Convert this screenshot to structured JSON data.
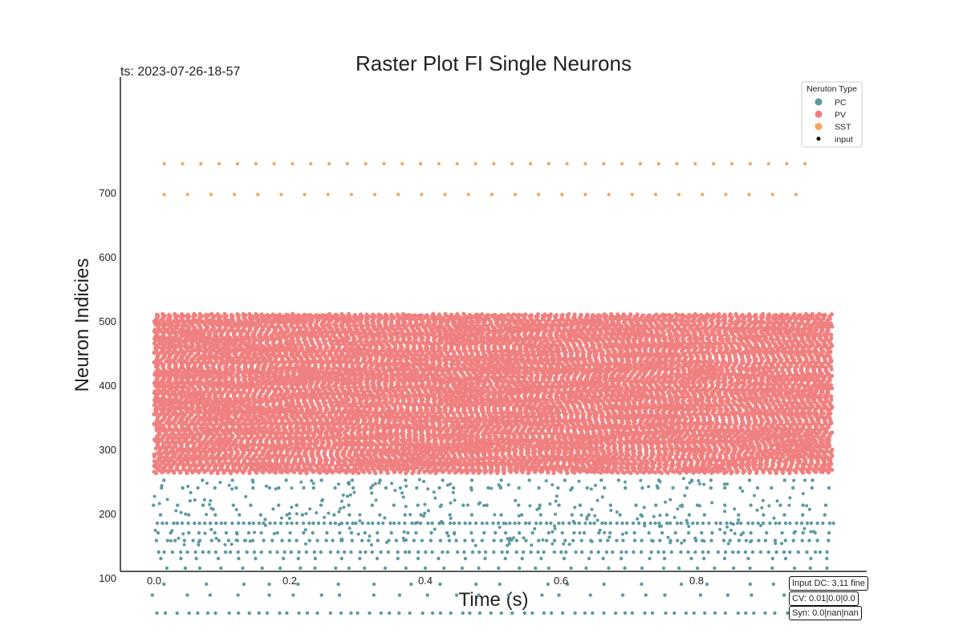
{
  "chart_data": {
    "type": "scatter",
    "title": "Raster Plot FI Single Neurons",
    "subtitle": "ts: 2023-07-26-18-57",
    "xlabel": "Time (s)",
    "ylabel": "Neuron Indicies",
    "xlim": [
      -0.05,
      1.05
    ],
    "ylim": [
      10,
      780
    ],
    "x_ticks": [
      0.0,
      0.2,
      0.4,
      0.6,
      0.8
    ],
    "x_tick_labels": [
      "0.0",
      "0.2",
      "0.4",
      "0.6",
      "0.8"
    ],
    "y_ticks": [
      100,
      200,
      300,
      400,
      500,
      600,
      700
    ],
    "y_tick_labels": [
      "100",
      "200",
      "300",
      "400",
      "500",
      "600",
      "700"
    ],
    "grid": false,
    "legend": {
      "title": "Neruton Type",
      "placement": "top-right",
      "entries": [
        {
          "label": "PC",
          "color": "#5b9aa0"
        },
        {
          "label": "PV",
          "color": "#f08080"
        },
        {
          "label": "SST",
          "color": "#f4a460"
        },
        {
          "label": "input",
          "color": "#000000"
        }
      ]
    },
    "series": [
      {
        "name": "PC",
        "color": "#5b9aa0",
        "rows": [
          {
            "neuron": 45,
            "spike_interval_s": 0.015,
            "t_start": 0.003,
            "t_end": 1.003
          },
          {
            "neuron": 73,
            "spike_interval_s": 0.04,
            "t_start": 0.003,
            "t_end": 0.99
          },
          {
            "neuron": 90,
            "spike_interval_s": 0.05,
            "t_start": 0.02,
            "t_end": 0.99
          },
          {
            "neuron": 115,
            "spike_interval_s": 0.027,
            "t_start": 0.02,
            "t_end": 1.0
          },
          {
            "neuron": 130,
            "spike_interval_s": 0.03,
            "t_start": 0.005,
            "t_end": 1.005
          },
          {
            "neuron": 140,
            "spike_interval_s": 0.011,
            "t_start": 0.005,
            "t_end": 1.005
          },
          {
            "neuron": 158,
            "spike_interval_s": 0.013,
            "t_start": 0.005,
            "t_end": 1.005
          },
          {
            "neuron": 170,
            "spike_interval_s": 0.019,
            "t_start": 0.01,
            "t_end": 1.0
          },
          {
            "neuron": 185,
            "spike_interval_s": 0.008,
            "t_start": 0.003,
            "t_end": 1.003
          },
          {
            "neuron": 198,
            "spike_interval_s": 0.035,
            "t_start": 0.015,
            "t_end": 1.0
          },
          {
            "neuron": 213,
            "spike_interval_s": 0.035,
            "t_start": 0.005,
            "t_end": 1.005
          },
          {
            "neuron": 240,
            "spike_interval_s": 0.025,
            "t_start": 0.015,
            "t_end": 1.005
          },
          {
            "neuron": 252,
            "spike_interval_s": 0.045,
            "t_start": 0.02,
            "t_end": 1.0
          }
        ]
      },
      {
        "name": "PV",
        "color": "#f08080",
        "neuron_range": [
          263,
          510
        ],
        "spike_interval_s": 0.009,
        "t_start": 0.0,
        "t_end": 1.0
      },
      {
        "name": "SST",
        "color": "#f4a460",
        "rows": [
          {
            "neuron": 697,
            "spike_interval_s": 0.0345,
            "t_start": 0.015,
            "t_end": 0.955
          },
          {
            "neuron": 745,
            "spike_interval_s": 0.027,
            "t_start": 0.015,
            "t_end": 0.96
          }
        ]
      }
    ]
  },
  "annotations": [
    "Input DC: 3,11 fine",
    "CV: 0.01|0.0|0.0",
    "Syn: 0.0|nan|nan"
  ]
}
